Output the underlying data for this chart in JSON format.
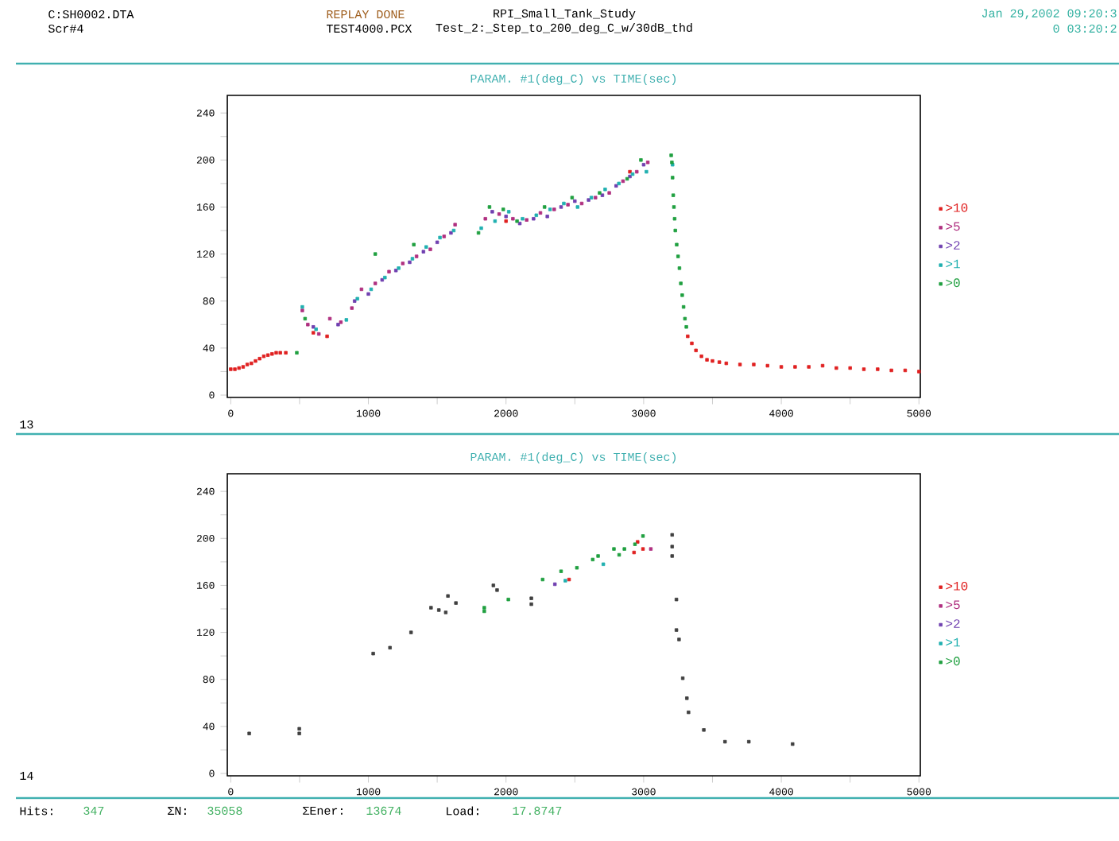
{
  "chart_data": [
    {
      "type": "scatter",
      "title": "PARAM. #1(deg_C) vs TIME(sec)",
      "annotations": [
        "C:SH0002.DTA",
        "Scr#4",
        "REPLAY DONE",
        "TEST4000.PCX",
        "RPI_Small_Tank_Study",
        "Test_2:_Step_to_200_deg_C_w/30dB_thd",
        "Jan 29,2002 09:20:3",
        "0 03:20:2",
        "13"
      ],
      "xlim": [
        -25,
        5010
      ],
      "ylim": [
        -2,
        255
      ],
      "xticks": [
        0,
        {
          "value": 500,
          "label": null
        },
        1000,
        {
          "value": 1500,
          "label": null
        },
        2000,
        {
          "value": 2500,
          "label": null
        },
        3000,
        {
          "value": 3500,
          "label": null
        },
        4000,
        {
          "value": 4500,
          "label": null
        },
        5000
      ],
      "yticks": [
        0,
        {
          "value": 20,
          "label": null
        },
        40,
        {
          "value": 60,
          "label": null
        },
        80,
        {
          "value": 100,
          "label": null
        },
        120,
        {
          "value": 140,
          "label": null
        },
        160,
        {
          "value": 180,
          "label": null
        },
        200,
        {
          "value": 220,
          "label": null
        },
        240
      ],
      "marker": "square",
      "legend": "right",
      "series": [
        {
          "name": ">10",
          "color": "#e02020",
          "x": [
            0,
            30,
            60,
            90,
            120,
            150,
            180,
            210,
            240,
            270,
            300,
            330,
            360,
            400,
            600,
            700,
            2000,
            2900,
            3320,
            3350,
            3380,
            3420,
            3460,
            3500,
            3550,
            3600,
            3700,
            3800,
            3900,
            4000,
            4100,
            4200,
            4300,
            4400,
            4500,
            4600,
            4700,
            4800,
            4900,
            5000
          ],
          "values": [
            22,
            22,
            23,
            24,
            26,
            27,
            29,
            31,
            33,
            34,
            35,
            36,
            36,
            36,
            53,
            50,
            148,
            190,
            50,
            44,
            38,
            33,
            30,
            29,
            28,
            27,
            26,
            26,
            25,
            24,
            24,
            24,
            25,
            23,
            23,
            22,
            22,
            21,
            21,
            20
          ]
        },
        {
          "name": ">5",
          "color": "#b03080",
          "x": [
            520,
            560,
            640,
            720,
            800,
            880,
            950,
            1050,
            1150,
            1250,
            1350,
            1450,
            1550,
            1630,
            1850,
            1950,
            2050,
            2150,
            2250,
            2350,
            2450,
            2550,
            2650,
            2750,
            2850,
            2950,
            3030
          ],
          "values": [
            72,
            60,
            52,
            65,
            62,
            74,
            90,
            95,
            105,
            112,
            118,
            124,
            135,
            145,
            150,
            154,
            150,
            149,
            155,
            158,
            162,
            163,
            168,
            172,
            182,
            190,
            198
          ]
        },
        {
          "name": ">2",
          "color": "#7040b0",
          "x": [
            600,
            780,
            900,
            1000,
            1100,
            1200,
            1300,
            1400,
            1500,
            1600,
            1900,
            2000,
            2100,
            2200,
            2300,
            2400,
            2500,
            2600,
            2700,
            2800,
            2900,
            3000
          ],
          "values": [
            58,
            60,
            80,
            86,
            98,
            106,
            113,
            122,
            130,
            138,
            156,
            152,
            146,
            150,
            152,
            160,
            165,
            166,
            170,
            178,
            186,
            196
          ]
        },
        {
          "name": ">1",
          "color": "#20b0b0",
          "x": [
            520,
            620,
            840,
            920,
            1020,
            1120,
            1220,
            1320,
            1420,
            1520,
            1620,
            1820,
            1920,
            2020,
            2120,
            2220,
            2320,
            2420,
            2520,
            2620,
            2720,
            2820,
            2920,
            3020,
            3210
          ],
          "values": [
            75,
            56,
            64,
            82,
            90,
            100,
            108,
            116,
            126,
            134,
            140,
            142,
            148,
            156,
            150,
            153,
            158,
            163,
            160,
            168,
            175,
            180,
            188,
            190,
            196
          ]
        },
        {
          "name": ">0",
          "color": "#20a040",
          "x": [
            480,
            540,
            1050,
            1330,
            1800,
            1880,
            1980,
            2080,
            2280,
            2480,
            2680,
            2880,
            2980,
            3200,
            3205,
            3210,
            3215,
            3220,
            3225,
            3230,
            3240,
            3250,
            3260,
            3270,
            3280,
            3290,
            3300,
            3310
          ],
          "values": [
            36,
            65,
            120,
            128,
            138,
            160,
            158,
            148,
            160,
            168,
            172,
            184,
            200,
            204,
            198,
            185,
            170,
            160,
            150,
            140,
            128,
            118,
            108,
            95,
            85,
            75,
            65,
            58
          ]
        }
      ]
    },
    {
      "type": "scatter",
      "title": "PARAM. #1(deg_C) vs TIME(sec)",
      "annotations": [
        "14",
        "Hits:",
        "347",
        "ΣN:",
        "35058",
        "ΣEner:",
        "13674",
        "Load:",
        "17.8747"
      ],
      "xlim": [
        -25,
        5010
      ],
      "ylim": [
        -2,
        255
      ],
      "xticks": [
        0,
        {
          "value": 500,
          "label": null
        },
        1000,
        {
          "value": 1500,
          "label": null
        },
        2000,
        {
          "value": 2500,
          "label": null
        },
        3000,
        {
          "value": 3500,
          "label": null
        },
        4000,
        {
          "value": 4500,
          "label": null
        },
        5000
      ],
      "yticks": [
        0,
        {
          "value": 20,
          "label": null
        },
        40,
        {
          "value": 60,
          "label": null
        },
        80,
        {
          "value": 100,
          "label": null
        },
        120,
        {
          "value": 140,
          "label": null
        },
        160,
        {
          "value": 180,
          "label": null
        },
        200,
        {
          "value": 220,
          "label": null
        },
        240
      ],
      "marker": "square",
      "legend": "right",
      "series": [
        {
          "color": "#404040",
          "x": [
            134,
            498,
            498,
            1035,
            1157,
            1310,
            1455,
            1512,
            1562,
            1578,
            1636,
            1908,
            1935,
            2184,
            2184,
            3207,
            3207,
            3207,
            3238,
            3238,
            3257,
            3284,
            3314,
            3326,
            3437,
            3591,
            3764,
            4082
          ],
          "values": [
            34,
            38,
            34,
            102,
            107,
            120,
            141,
            139,
            137,
            151,
            145,
            160,
            156,
            149,
            144,
            203,
            193,
            185,
            148,
            122,
            114,
            81,
            64,
            52,
            37,
            27,
            27,
            25
          ]
        },
        {
          "name": ">10",
          "color": "#e02020",
          "x": [
            2458,
            2956,
            2995,
            2930
          ],
          "values": [
            165,
            197,
            191,
            188
          ]
        },
        {
          "name": ">5",
          "color": "#b03080",
          "x": [
            3052
          ],
          "values": [
            191
          ]
        },
        {
          "name": ">2",
          "color": "#7040b0",
          "x": [
            2355
          ],
          "values": [
            161
          ]
        },
        {
          "name": ">1",
          "color": "#20b0b0",
          "x": [
            2431,
            2707
          ],
          "values": [
            164,
            178
          ]
        },
        {
          "name": ">0",
          "color": "#20a040",
          "x": [
            1842,
            1842,
            2017,
            2266,
            2400,
            2515,
            2630,
            2669,
            2784,
            2860,
            2937,
            2995,
            2822
          ],
          "values": [
            141,
            138,
            148,
            165,
            172,
            175,
            182,
            185,
            191,
            191,
            195,
            202,
            186
          ]
        }
      ]
    }
  ]
}
